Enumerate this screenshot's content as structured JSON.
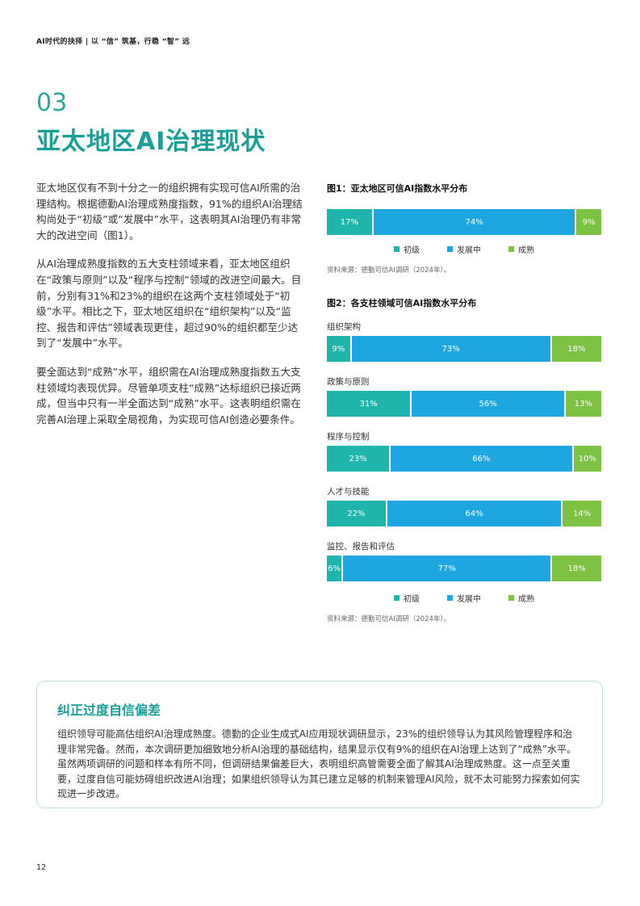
{
  "header": {
    "text": "AI时代的抉择 | 以 “信” 筑基，行稳 “智” 远"
  },
  "section": {
    "number": "03",
    "title": "亚太地区AI治理现状"
  },
  "body": {
    "paragraphs": [
      "亚太地区仅有不到十分之一的组织拥有实现可信AI所需的治理结构。根据德勤AI治理成熟度指数，91%的组织AI治理结构尚处于“初级”或“发展中”水平，这表明其AI治理仍有非常大的改进空间（图1）。",
      "从AI治理成熟度指数的五大支柱领域来看，亚太地区组织在“政策与原则”以及“程序与控制”领域的改进空间最大。目前，分别有31%和23%的组织在这两个支柱领域处于“初级”水平。相比之下，亚太地区组织在“组织架构”以及“监控、报告和评估”领域表现更佳，超过90%的组织都至少达到了“发展中”水平。",
      "要全面达到“成熟”水平，组织需在AI治理成熟度指数五大支柱领域均表现优异。尽管单项支柱“成熟”达标组织已接近两成，但当中只有一半全面达到“成熟”水平。这表明组织需在完善AI治理上采取全局视角，为实现可信AI创造必要条件。"
    ]
  },
  "colors": {
    "basic": "#1fb5ad",
    "developing": "#1ea6e0",
    "mature": "#7dc242",
    "accent": "#1a9e98"
  },
  "legend": {
    "basic": "初级",
    "developing": "发展中",
    "mature": "成熟"
  },
  "fig1": {
    "title": "图1：亚太地区可信AI指数水平分布",
    "values": [
      17,
      74,
      9
    ],
    "labels": [
      "17%",
      "74%",
      "9%"
    ],
    "source": "资料来源：德勤可信AI调研（2024年）。"
  },
  "fig2": {
    "title": "图2：各支柱领域可信AI指数水平分布",
    "rows": [
      {
        "name": "组织架构",
        "values": [
          9,
          73,
          18
        ],
        "labels": [
          "9%",
          "73%",
          "18%"
        ]
      },
      {
        "name": "政策与原则",
        "values": [
          31,
          56,
          13
        ],
        "labels": [
          "31%",
          "56%",
          "13%"
        ]
      },
      {
        "name": "程序与控制",
        "values": [
          23,
          66,
          10
        ],
        "labels": [
          "23%",
          "66%",
          "10%"
        ]
      },
      {
        "name": "人才与技能",
        "values": [
          22,
          64,
          14
        ],
        "labels": [
          "22%",
          "64%",
          "14%"
        ]
      },
      {
        "name": "监控、报告和评估",
        "values": [
          6,
          77,
          18
        ],
        "labels": [
          "6%",
          "77%",
          "18%"
        ]
      }
    ],
    "source": "资料来源：德勤可信AI调研（2024年）。"
  },
  "callout": {
    "title": "纠正过度自信偏差",
    "body": "组织领导可能高估组织AI治理成熟度。德勤的企业生成式AI应用现状调研显示，23%的组织领导认为其风险管理程序和治理非常完备。然而，本次调研更加细致地分析AI治理的基础结构，结果显示仅有9%的组织在AI治理上达到了“成熟”水平。虽然两项调研的问题和样本有所不同，但调研结果偏差巨大，表明组织高管需要全面了解其AI治理成熟度。这一点至关重要，过度自信可能妨碍组织改进AI治理；如果组织领导认为其已建立足够的机制来管理AI风险，就不太可能努力探索如何实现进一步改进。"
  },
  "page_number": "12"
}
